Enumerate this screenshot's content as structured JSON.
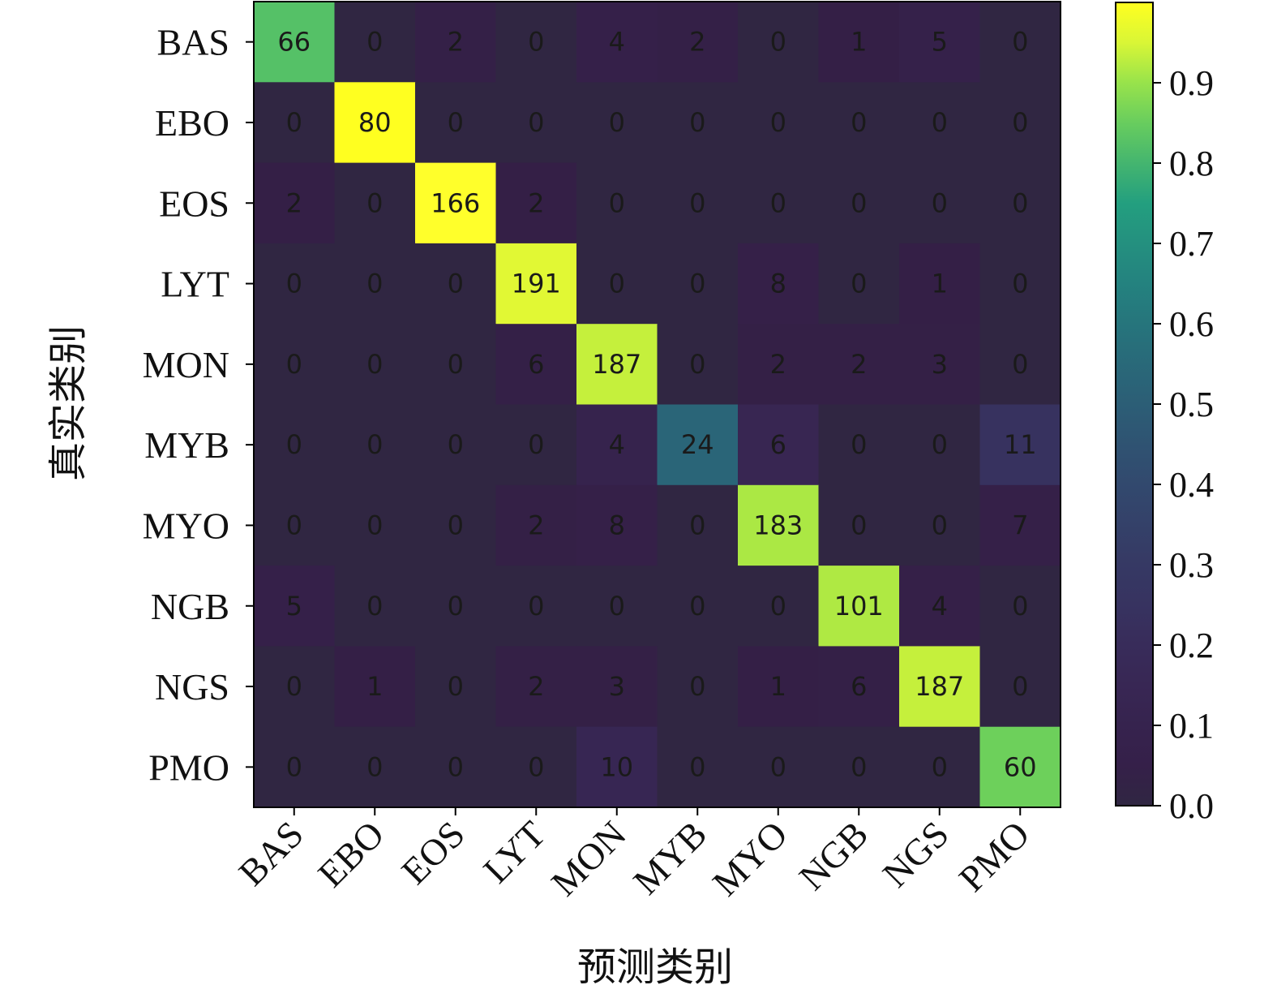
{
  "chart_data": {
    "type": "heatmap",
    "title": "",
    "xlabel": "预测类别",
    "ylabel": "真实类别",
    "x_categories": [
      "BAS",
      "EBO",
      "EOS",
      "LYT",
      "MON",
      "MYB",
      "MYO",
      "NGB",
      "NGS",
      "PMO"
    ],
    "y_categories": [
      "BAS",
      "EBO",
      "EOS",
      "LYT",
      "MON",
      "MYB",
      "MYO",
      "NGB",
      "NGS",
      "PMO"
    ],
    "matrix": [
      [
        66,
        0,
        2,
        0,
        4,
        2,
        0,
        1,
        5,
        0
      ],
      [
        0,
        80,
        0,
        0,
        0,
        0,
        0,
        0,
        0,
        0
      ],
      [
        2,
        0,
        166,
        2,
        0,
        0,
        0,
        0,
        0,
        0
      ],
      [
        0,
        0,
        0,
        191,
        0,
        0,
        8,
        0,
        1,
        0
      ],
      [
        0,
        0,
        0,
        6,
        187,
        0,
        2,
        2,
        3,
        0
      ],
      [
        0,
        0,
        0,
        0,
        4,
        24,
        6,
        0,
        0,
        11
      ],
      [
        0,
        0,
        0,
        2,
        8,
        0,
        183,
        0,
        0,
        7
      ],
      [
        5,
        0,
        0,
        0,
        0,
        0,
        0,
        101,
        4,
        0
      ],
      [
        0,
        1,
        0,
        2,
        3,
        0,
        1,
        6,
        187,
        0
      ],
      [
        0,
        0,
        0,
        0,
        10,
        0,
        0,
        0,
        0,
        60
      ]
    ],
    "color_normalization": "row",
    "colormap": "viridis",
    "colorbar": {
      "range": [
        0.0,
        1.0
      ],
      "ticks": [
        0.0,
        0.1,
        0.2,
        0.3,
        0.4,
        0.5,
        0.6,
        0.7,
        0.8,
        0.9
      ],
      "tick_labels": [
        "0.0",
        "0.1",
        "0.2",
        "0.3",
        "0.4",
        "0.5",
        "0.6",
        "0.7",
        "0.8",
        "0.9"
      ]
    },
    "grid": false,
    "x_tick_rotation_deg": 45
  }
}
